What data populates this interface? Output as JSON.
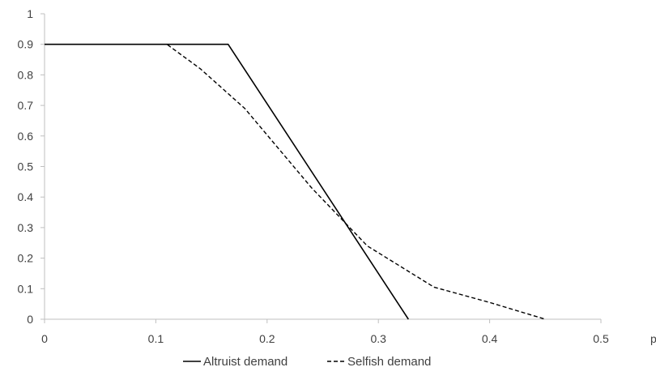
{
  "chart_data": {
    "type": "line",
    "title": "",
    "xlabel": "p",
    "ylabel": "",
    "xlim": [
      0,
      0.5
    ],
    "ylim": [
      0,
      1
    ],
    "x_ticks": [
      0,
      0.1,
      0.2,
      0.3,
      0.4,
      0.5
    ],
    "x_tick_labels": [
      "0",
      "0.1",
      "0.2",
      "0.3",
      "0.4",
      "0.5"
    ],
    "y_ticks": [
      0,
      0.1,
      0.2,
      0.3,
      0.4,
      0.5,
      0.6,
      0.7,
      0.8,
      0.9,
      1
    ],
    "y_tick_labels": [
      "0",
      "0.1",
      "0.2",
      "0.3",
      "0.4",
      "0.5",
      "0.6",
      "0.7",
      "0.8",
      "0.9",
      "1"
    ],
    "grid": false,
    "legend_position": "bottom-center",
    "series": [
      {
        "name": "Altruist demand",
        "style": "solid",
        "color": "#000000",
        "points": [
          [
            0,
            0.9
          ],
          [
            0.165,
            0.9
          ],
          [
            0.327,
            0
          ]
        ]
      },
      {
        "name": "Selfish demand",
        "style": "dashed",
        "color": "#000000",
        "points": [
          [
            0,
            0.9
          ],
          [
            0.11,
            0.9
          ],
          [
            0.14,
            0.82
          ],
          [
            0.18,
            0.69
          ],
          [
            0.24,
            0.43
          ],
          [
            0.29,
            0.24
          ],
          [
            0.35,
            0.105
          ],
          [
            0.4,
            0.055
          ],
          [
            0.45,
            0
          ]
        ]
      }
    ]
  }
}
